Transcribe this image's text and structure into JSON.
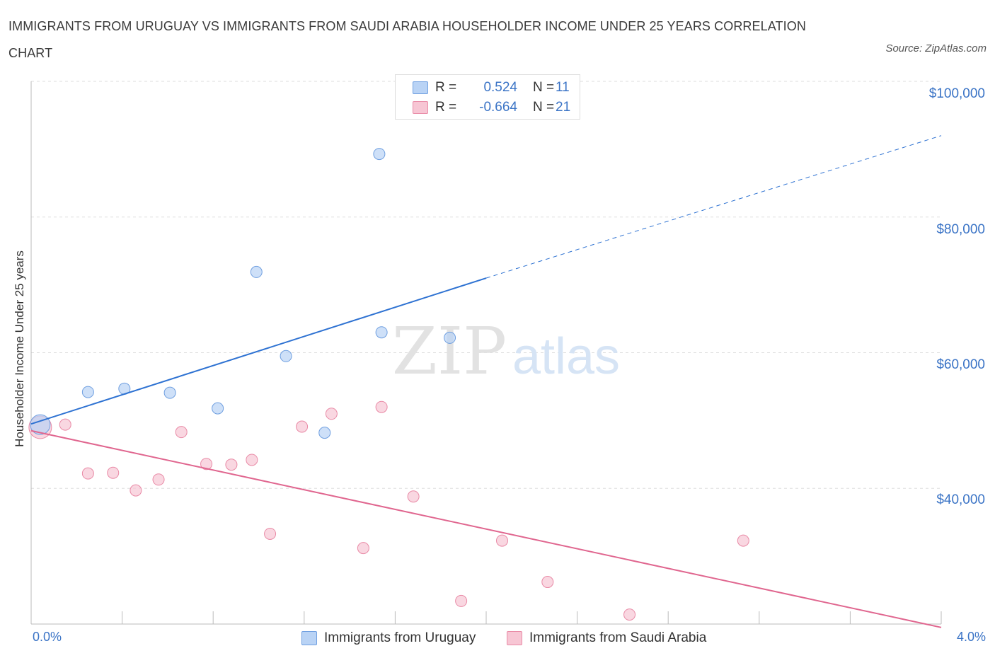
{
  "title": "IMMIGRANTS FROM URUGUAY VS IMMIGRANTS FROM SAUDI ARABIA HOUSEHOLDER INCOME UNDER 25 YEARS CORRELATION CHART",
  "source": "Source: ZipAtlas.com",
  "watermark": {
    "zip": "ZIP",
    "atlas": "atlas"
  },
  "legend": {
    "rows": [
      {
        "r_label": "R =",
        "r_value": "0.524",
        "n_label": "N =",
        "n_value": "11"
      },
      {
        "r_label": "R =",
        "r_value": "-0.664",
        "n_label": "N =",
        "n_value": "21"
      }
    ]
  },
  "bottom_legend": [
    "Immigrants from Uruguay",
    "Immigrants from Saudi Arabia"
  ],
  "colors": {
    "uruguay_fill": "#b9d3f5",
    "uruguay_stroke": "#6f9fe0",
    "uruguay_line": "#2e72d2",
    "saudi_fill": "#f7c6d4",
    "saudi_stroke": "#e98aa6",
    "saudi_line": "#e0668f",
    "axis_text": "#3b74c6",
    "grid": "#dddddd"
  },
  "chart_data": {
    "type": "scatter",
    "title": "IMMIGRANTS FROM URUGUAY VS IMMIGRANTS FROM SAUDI ARABIA HOUSEHOLDER INCOME UNDER 25 YEARS CORRELATION CHART",
    "xlabel": "",
    "ylabel": "Householder Income Under 25 years",
    "xlim": [
      0,
      4.0
    ],
    "ylim": [
      20000,
      100000
    ],
    "x_tick_labels": [
      "0.0%",
      "4.0%"
    ],
    "y_ticks": [
      40000,
      60000,
      80000,
      100000
    ],
    "y_tick_labels": [
      "$40,000",
      "$60,000",
      "$80,000",
      "$100,000"
    ],
    "grid": true,
    "series": [
      {
        "name": "Immigrants from Uruguay",
        "points": [
          {
            "x": 0.04,
            "y": 49400,
            "big": true
          },
          {
            "x": 0.25,
            "y": 54200
          },
          {
            "x": 0.41,
            "y": 54700
          },
          {
            "x": 0.61,
            "y": 54100
          },
          {
            "x": 0.82,
            "y": 51800
          },
          {
            "x": 0.99,
            "y": 71900
          },
          {
            "x": 1.12,
            "y": 59500
          },
          {
            "x": 1.29,
            "y": 48200
          },
          {
            "x": 1.53,
            "y": 89300
          },
          {
            "x": 1.54,
            "y": 63000
          },
          {
            "x": 1.84,
            "y": 62200
          }
        ],
        "trend": {
          "x0": 0.0,
          "y0": 49500,
          "x1": 2.0,
          "y1": 71000,
          "x_ext": 4.0,
          "y_ext": 92000
        }
      },
      {
        "name": "Immigrants from Saudi Arabia",
        "points": [
          {
            "x": 0.04,
            "y": 49000,
            "big": true
          },
          {
            "x": 0.15,
            "y": 49400
          },
          {
            "x": 0.25,
            "y": 42200
          },
          {
            "x": 0.36,
            "y": 42300
          },
          {
            "x": 0.46,
            "y": 39700
          },
          {
            "x": 0.56,
            "y": 41300
          },
          {
            "x": 0.66,
            "y": 48300
          },
          {
            "x": 0.77,
            "y": 43600
          },
          {
            "x": 0.88,
            "y": 43500
          },
          {
            "x": 0.97,
            "y": 44200
          },
          {
            "x": 1.05,
            "y": 33300
          },
          {
            "x": 1.19,
            "y": 49100
          },
          {
            "x": 1.32,
            "y": 51000
          },
          {
            "x": 1.46,
            "y": 31200
          },
          {
            "x": 1.54,
            "y": 52000
          },
          {
            "x": 1.68,
            "y": 38800
          },
          {
            "x": 1.89,
            "y": 23400
          },
          {
            "x": 2.07,
            "y": 32300
          },
          {
            "x": 2.27,
            "y": 26200
          },
          {
            "x": 2.63,
            "y": 21400
          },
          {
            "x": 3.13,
            "y": 32300
          }
        ],
        "trend": {
          "x0": 0.0,
          "y0": 48500,
          "x1": 4.0,
          "y1": 19500
        }
      }
    ]
  }
}
